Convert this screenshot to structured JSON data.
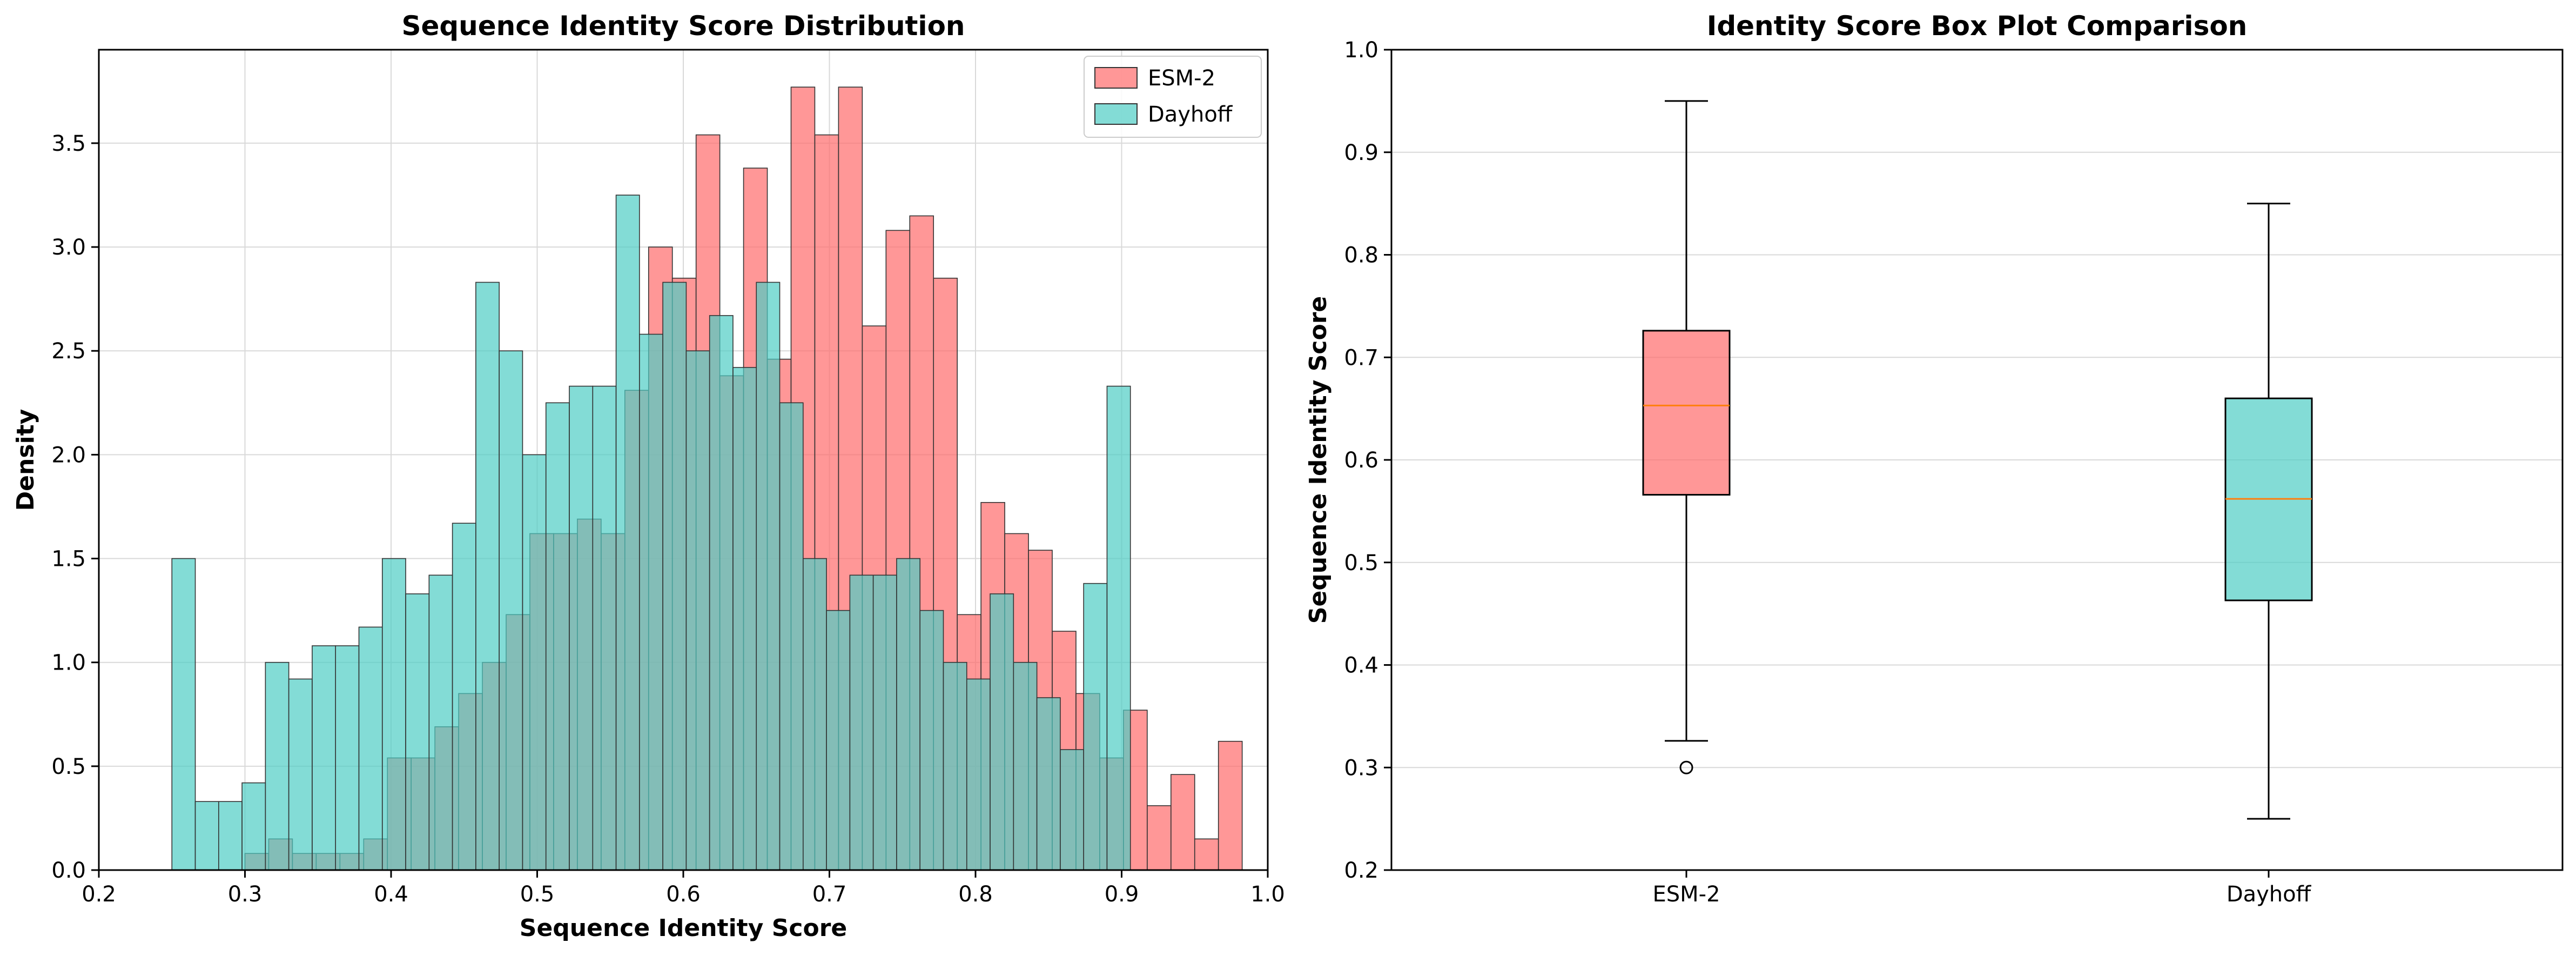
{
  "colors": {
    "esm": "#ff6b6b",
    "dayhoff": "#4ecdc4",
    "edge": "#333333",
    "median": "#ff7f0e"
  },
  "chart_data": [
    {
      "type": "histogram",
      "title": "Sequence Identity Score Distribution",
      "xlabel": "Sequence Identity Score",
      "ylabel": "Density",
      "xlim": [
        0.2,
        1.0
      ],
      "ylim": [
        0,
        3.95
      ],
      "xticks": [
        "0.2",
        "0.3",
        "0.4",
        "0.5",
        "0.6",
        "0.7",
        "0.8",
        "0.9",
        "1.0"
      ],
      "yticks": [
        "0.0",
        "0.5",
        "1.0",
        "1.5",
        "2.0",
        "2.5",
        "3.0",
        "3.5"
      ],
      "grid": true,
      "legend": {
        "position": "top-right",
        "labels": [
          "ESM-2",
          "Dayhoff"
        ]
      },
      "series": [
        {
          "name": "ESM-2",
          "bin_start": 0.3,
          "bin_width": 0.01625,
          "density": [
            0.08,
            0.15,
            0.08,
            0.08,
            0.08,
            0.15,
            0.54,
            0.54,
            0.69,
            0.85,
            1.0,
            1.23,
            1.62,
            1.62,
            1.69,
            1.62,
            2.31,
            3.0,
            2.85,
            3.54,
            2.38,
            3.38,
            2.46,
            3.77,
            3.54,
            3.77,
            2.62,
            3.08,
            3.15,
            2.85,
            1.23,
            1.77,
            1.62,
            1.54,
            1.15,
            0.85,
            0.54,
            0.77,
            0.31,
            0.46,
            0.15,
            0.62
          ]
        },
        {
          "name": "Dayhoff",
          "bin_start": 0.25,
          "bin_width": 0.016,
          "density": [
            1.5,
            0.33,
            0.33,
            0.42,
            1.0,
            0.92,
            1.08,
            1.08,
            1.17,
            1.5,
            1.33,
            1.42,
            1.67,
            2.83,
            2.5,
            2.0,
            2.25,
            2.33,
            2.33,
            3.25,
            2.58,
            2.83,
            2.5,
            2.67,
            2.42,
            2.83,
            2.25,
            1.5,
            1.25,
            1.42,
            1.42,
            1.5,
            1.25,
            1.0,
            0.92,
            1.33,
            1.0,
            0.83,
            0.58,
            1.38,
            2.33
          ]
        }
      ]
    },
    {
      "type": "box",
      "title": "Identity Score Box Plot Comparison",
      "xlabel": "",
      "ylabel": "Sequence Identity Score",
      "ylim": [
        0.2,
        1.0
      ],
      "yticks": [
        "0.2",
        "0.3",
        "0.4",
        "0.5",
        "0.6",
        "0.7",
        "0.8",
        "0.9",
        "1.0"
      ],
      "grid": true,
      "categories": [
        "ESM-2",
        "Dayhoff"
      ],
      "boxes": [
        {
          "name": "ESM-2",
          "whisker_low": 0.326,
          "q1": 0.566,
          "median": 0.653,
          "q3": 0.726,
          "whisker_high": 0.95,
          "outliers": [
            0.3
          ]
        },
        {
          "name": "Dayhoff",
          "whisker_low": 0.25,
          "q1": 0.463,
          "median": 0.562,
          "q3": 0.66,
          "whisker_high": 0.85,
          "outliers": []
        }
      ]
    }
  ]
}
